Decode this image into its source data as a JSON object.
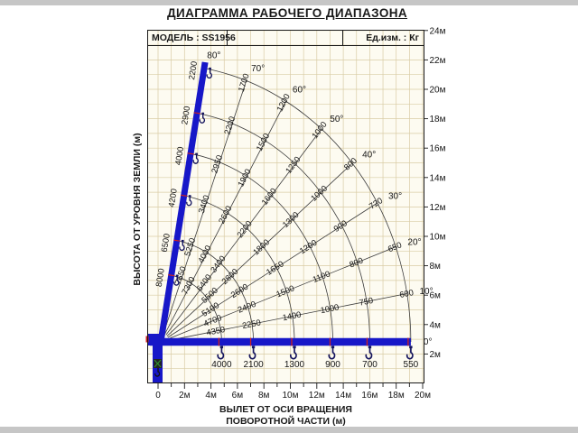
{
  "page": {
    "title": "ДИАГРАММА РАБОЧЕГО ДИАПАЗОНА"
  },
  "header": {
    "model": "МОДЕЛЬ : SS1956",
    "units": "Ед.изм. : Кг"
  },
  "axes": {
    "x_label_line1": "ВЫЛЕТ ОТ ОСИ ВРАЩЕНИЯ",
    "x_label_line2": "ПОВОРОТНОЙ ЧАСТИ (м)",
    "y_label": "ВЫСОТА ОТ УРОВНЯ ЗЕМЛИ (м)",
    "x_tick_labels": [
      "0",
      "2м",
      "4м",
      "6м",
      "8м",
      "10м",
      "12м",
      "14м",
      "16м",
      "18м",
      "20м"
    ],
    "y_tick_labels_right": [
      "2м",
      "4м",
      "6м",
      "8м",
      "10м",
      "12м",
      "14м",
      "16м",
      "18м",
      "20м",
      "22м",
      "24м"
    ]
  },
  "chart_data": {
    "type": "line",
    "subtype": "crane-working-range-polar-load-chart",
    "title": "ДИАГРАММА РАБОЧЕГО ДИАПАЗОНА",
    "model": "SS1956",
    "units": "Кг",
    "xlabel": "ВЫЛЕТ ОТ ОСИ ВРАЩЕНИЯ ПОВОРОТНОЙ ЧАСТИ (м)",
    "ylabel": "ВЫСОТА ОТ УРОВНЯ ЗЕМЛИ (м)",
    "x_range_m": [
      0,
      20
    ],
    "y_range_m": [
      0,
      24
    ],
    "grid": true,
    "boom_pivot_height_m": 2.9,
    "boom_angles_deg": [
      0,
      10,
      20,
      30,
      40,
      50,
      60,
      70,
      80
    ],
    "angle_labels": [
      "0°",
      "10°",
      "20°",
      "30°",
      "40°",
      "50°",
      "60°",
      "70°",
      "80°"
    ],
    "extension_radii_m": [
      4.6,
      7.0,
      10.1,
      13.0,
      15.8,
      18.9
    ],
    "capacities_kg_by_angle": {
      "0": [
        4000,
        2100,
        1300,
        900,
        700,
        550
      ],
      "10": [
        4350,
        2250,
        1400,
        1000,
        750,
        600
      ],
      "20": [
        4700,
        2400,
        1500,
        1100,
        800,
        650
      ],
      "30": [
        5100,
        2600,
        1650,
        1200,
        900,
        720
      ],
      "40": [
        5500,
        2800,
        1800,
        1300,
        1000,
        800
      ],
      "50": [
        6400,
        3400,
        2200,
        1600,
        1250,
        1000
      ],
      "60": [
        7300,
        4000,
        2600,
        1900,
        1500,
        1200
      ],
      "70": [
        7650,
        5250,
        3400,
        2950,
        2200,
        1700
      ],
      "80": [
        8000,
        6500,
        4200,
        4000,
        2900,
        2200
      ]
    }
  },
  "colors": {
    "boom_blue": "#1717c8",
    "hook_navy": "#14145e",
    "grid_tan": "#d9cca5",
    "diagram_line": "#3c3c3c",
    "accent_red": "#cc2020",
    "hook_green": "#2f8f2f",
    "frame_black": "#1a1a1a",
    "letterbox_gray": "#c6c6c6",
    "plot_cream": "#fdfbf1"
  }
}
